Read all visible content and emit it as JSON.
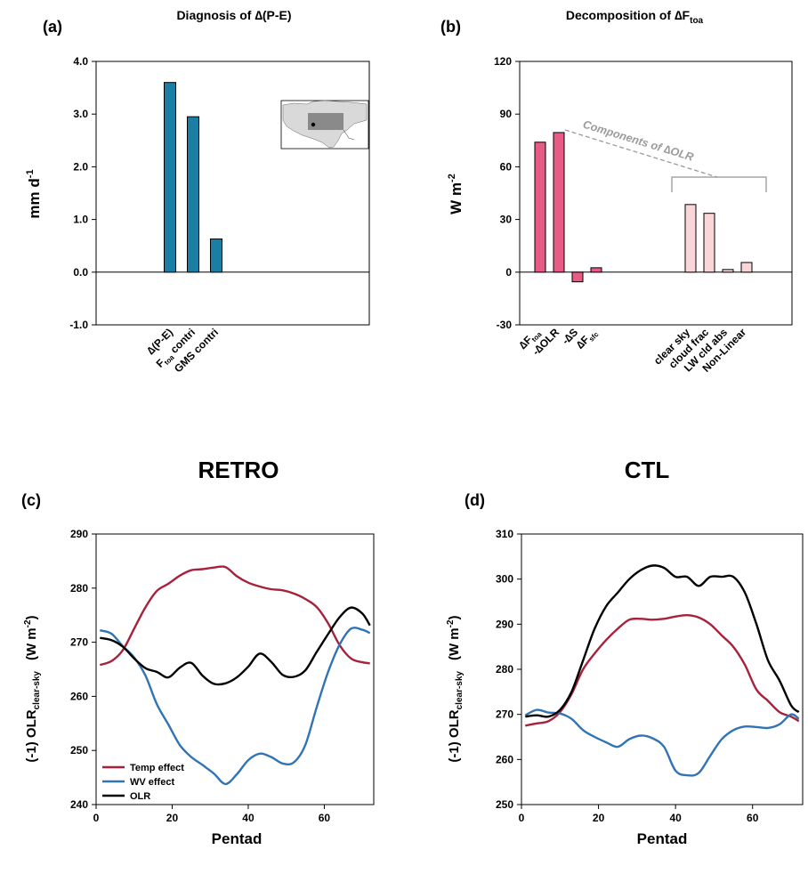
{
  "colors": {
    "teal": "#1B7FA3",
    "pink": "#E75C85",
    "lightpink": "#FAD6D8",
    "red": "#A8213A",
    "blue": "#3074B5",
    "black": "#000000",
    "gray": "#9a9a9a"
  },
  "sections": {
    "left": "RETRO",
    "right": "CTL"
  },
  "chart_data": [
    {
      "panel": "(a)",
      "type": "bar",
      "title": "Diagnosis of ∆(P-E)",
      "ylabel": "mm d",
      "ylabel_sup": "-1",
      "ylim": [
        -1.0,
        4.0
      ],
      "yticks": [
        "4.0",
        "3.0",
        "2.0",
        "1.0",
        "0.0",
        "-1.0"
      ],
      "ytick_values": [
        4,
        3,
        2,
        1,
        0,
        -1
      ],
      "categories": [
        "∆(P-E)",
        "F",
        "GMS contri"
      ],
      "category_parts": {
        "f_sub": "toa",
        "f_rest": " contri"
      },
      "values": [
        3.6,
        2.95,
        0.63
      ],
      "inset": "map-inset"
    },
    {
      "panel": "(b)",
      "type": "bar",
      "title": "Decomposition of  ∆F",
      "title_sub": "toa",
      "ylabel": "W m",
      "ylabel_sup": "-2",
      "ylim": [
        -30,
        120
      ],
      "yticks": [
        "120",
        "90",
        "60",
        "30",
        "0",
        "-30"
      ],
      "ytick_values": [
        120,
        90,
        60,
        30,
        0,
        -30
      ],
      "categories": [
        "∆F",
        "-∆OLR",
        "-∆S",
        "∆F"
      ],
      "category_subs": [
        "toa",
        "",
        "",
        "sfc"
      ],
      "values": [
        74,
        79.5,
        -5.5,
        2.5
      ],
      "component_categories": [
        "clear sky",
        "cloud frac",
        "LW cld abs",
        "Non-Linear"
      ],
      "component_values": [
        38.5,
        33.5,
        1.5,
        5.5
      ],
      "annotation": "Components of ∆OLR"
    },
    {
      "panel": "(c)",
      "type": "line",
      "xlabel": "Pentad",
      "ylabel": "(-1) OLR",
      "ylabel_sub": "clear-sky",
      "ylabel_units": "(W m",
      "ylabel_units_sup": "-2",
      "ylabel_units_close": ")",
      "xlim": [
        0,
        73
      ],
      "ylim": [
        240,
        290
      ],
      "xticks": [
        0,
        20,
        40,
        60
      ],
      "yticks": [
        240,
        250,
        260,
        270,
        280,
        290
      ],
      "legend": "bottom-left",
      "series": [
        {
          "name": "Temp effect",
          "x": [
            1,
            4,
            7,
            10,
            13,
            16,
            19,
            22,
            25,
            28,
            31,
            34,
            37,
            40,
            43,
            46,
            49,
            52,
            55,
            58,
            61,
            64,
            67,
            70,
            72
          ],
          "y": [
            265.8,
            266.5,
            268.5,
            272.5,
            276.5,
            279.5,
            280.8,
            282.3,
            283.3,
            283.5,
            283.8,
            283.9,
            282.2,
            281.0,
            280.3,
            279.8,
            279.6,
            279.0,
            278.0,
            276.5,
            273.5,
            269.5,
            267.0,
            266.3,
            266.1
          ]
        },
        {
          "name": "WV effect",
          "x": [
            1,
            4,
            7,
            10,
            13,
            16,
            19,
            22,
            25,
            28,
            31,
            34,
            37,
            40,
            43,
            46,
            49,
            52,
            55,
            58,
            61,
            64,
            67,
            70,
            72
          ],
          "y": [
            272.2,
            271.6,
            269.3,
            267.2,
            263.8,
            258.5,
            254.8,
            251.0,
            248.8,
            247.3,
            245.7,
            243.8,
            245.6,
            248.2,
            249.4,
            248.8,
            247.6,
            247.8,
            251.0,
            258.0,
            264.5,
            269.5,
            272.5,
            272.3,
            271.7
          ]
        },
        {
          "name": "OLR",
          "x": [
            1,
            4,
            7,
            10,
            13,
            16,
            19,
            22,
            25,
            28,
            31,
            34,
            37,
            40,
            43,
            46,
            49,
            52,
            55,
            58,
            61,
            64,
            67,
            70,
            72
          ],
          "y": [
            270.8,
            270.4,
            269.2,
            267.0,
            265.2,
            264.5,
            263.5,
            265.3,
            266.2,
            263.8,
            262.3,
            262.4,
            263.5,
            265.5,
            267.9,
            266.4,
            264.0,
            263.6,
            264.8,
            268.2,
            271.5,
            274.6,
            276.4,
            275.3,
            273.1
          ]
        }
      ]
    },
    {
      "panel": "(d)",
      "type": "line",
      "xlabel": "Pentad",
      "ylabel": "(-1) OLR",
      "ylabel_sub": "clear-sky",
      "ylabel_units": "(W m",
      "ylabel_units_sup": "-2",
      "ylabel_units_close": ")",
      "xlim": [
        0,
        73
      ],
      "ylim": [
        250,
        310
      ],
      "xticks": [
        0,
        20,
        40,
        60
      ],
      "yticks": [
        250,
        260,
        270,
        280,
        290,
        300,
        310
      ],
      "series": [
        {
          "name": "Temp effect",
          "x": [
            1,
            4,
            7,
            10,
            13,
            16,
            19,
            22,
            25,
            28,
            31,
            34,
            37,
            40,
            43,
            46,
            49,
            52,
            55,
            58,
            61,
            64,
            67,
            70,
            72
          ],
          "y": [
            267.5,
            268.0,
            268.5,
            270.5,
            274.5,
            280.0,
            283.5,
            286.5,
            289.0,
            291.0,
            291.2,
            291.0,
            291.2,
            291.7,
            292.0,
            291.5,
            290.0,
            287.5,
            285.0,
            281.0,
            275.5,
            273.0,
            270.5,
            269.5,
            268.5
          ]
        },
        {
          "name": "WV effect",
          "x": [
            1,
            4,
            7,
            10,
            13,
            16,
            19,
            22,
            25,
            28,
            31,
            34,
            37,
            40,
            43,
            46,
            49,
            52,
            55,
            58,
            61,
            64,
            67,
            70,
            72
          ],
          "y": [
            269.8,
            271.0,
            270.4,
            270.2,
            269.0,
            266.5,
            265.0,
            263.8,
            262.8,
            264.5,
            265.3,
            264.7,
            262.8,
            257.5,
            256.5,
            257.0,
            260.8,
            264.5,
            266.5,
            267.3,
            267.2,
            267.0,
            267.8,
            270.0,
            269.0
          ]
        },
        {
          "name": "OLR",
          "x": [
            1,
            4,
            7,
            10,
            13,
            16,
            19,
            22,
            25,
            28,
            31,
            34,
            37,
            40,
            43,
            46,
            49,
            52,
            55,
            58,
            61,
            64,
            67,
            70,
            72
          ],
          "y": [
            269.5,
            269.8,
            269.5,
            271.0,
            275.0,
            282.0,
            289.0,
            294.0,
            297.0,
            300.0,
            302.0,
            303.0,
            302.5,
            300.5,
            300.5,
            298.5,
            300.5,
            300.5,
            300.5,
            297.0,
            290.0,
            282.0,
            277.5,
            272.0,
            270.5
          ]
        }
      ]
    }
  ]
}
